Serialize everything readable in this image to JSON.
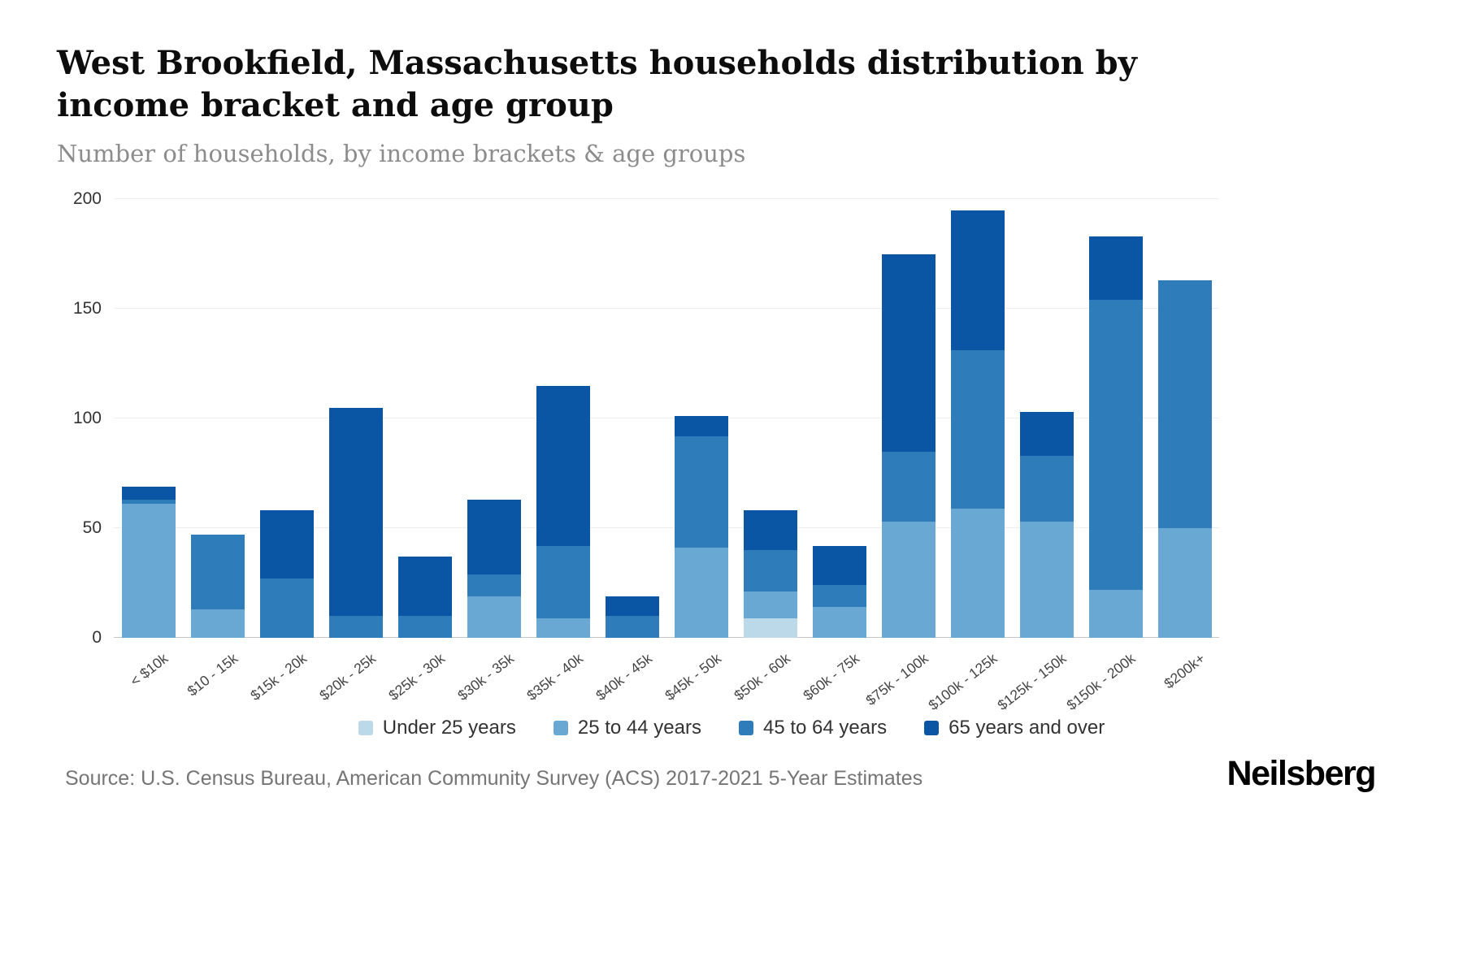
{
  "header": {
    "title": "West Brookfield, Massachusetts households distribution by income bracket and age group",
    "subtitle": "Number of households, by income brackets & age groups"
  },
  "chart_data": {
    "type": "bar",
    "stacked": true,
    "categories": [
      "< $10k",
      "$10 - 15k",
      "$15k - 20k",
      "$20k - 25k",
      "$25k - 30k",
      "$30k - 35k",
      "$35k - 40k",
      "$40k - 45k",
      "$45k - 50k",
      "$50k - 60k",
      "$60k - 75k",
      "$75k - 100k",
      "$100k - 125k",
      "$125k - 150k",
      "$150k - 200k",
      "$200k+"
    ],
    "series": [
      {
        "name": "Under 25 years",
        "color": "#bcd9ea",
        "values": [
          0,
          0,
          0,
          0,
          0,
          0,
          0,
          0,
          0,
          9,
          0,
          0,
          0,
          0,
          0,
          0
        ]
      },
      {
        "name": "25 to 44 years",
        "color": "#68a8d2",
        "values": [
          61,
          13,
          0,
          0,
          0,
          19,
          9,
          0,
          41,
          12,
          14,
          53,
          59,
          53,
          22,
          50
        ]
      },
      {
        "name": "45 to 64 years",
        "color": "#2e7cba",
        "values": [
          2,
          34,
          27,
          10,
          10,
          10,
          33,
          10,
          51,
          19,
          10,
          32,
          72,
          30,
          132,
          113
        ]
      },
      {
        "name": "65 years and over",
        "color": "#0b55a5",
        "values": [
          6,
          0,
          31,
          95,
          27,
          34,
          73,
          9,
          9,
          18,
          18,
          90,
          64,
          20,
          29,
          0
        ]
      }
    ],
    "title": "West Brookfield, Massachusetts households distribution by income bracket and age group",
    "xlabel": "",
    "ylabel": "",
    "ylim": [
      0,
      200
    ],
    "yticks": [
      0,
      50,
      100,
      150,
      200
    ],
    "grid": true,
    "legend_position": "bottom"
  },
  "footer": {
    "source": "Source: U.S. Census Bureau, American Community Survey (ACS) 2017-2021 5-Year Estimates",
    "logo": "Neilsberg"
  }
}
